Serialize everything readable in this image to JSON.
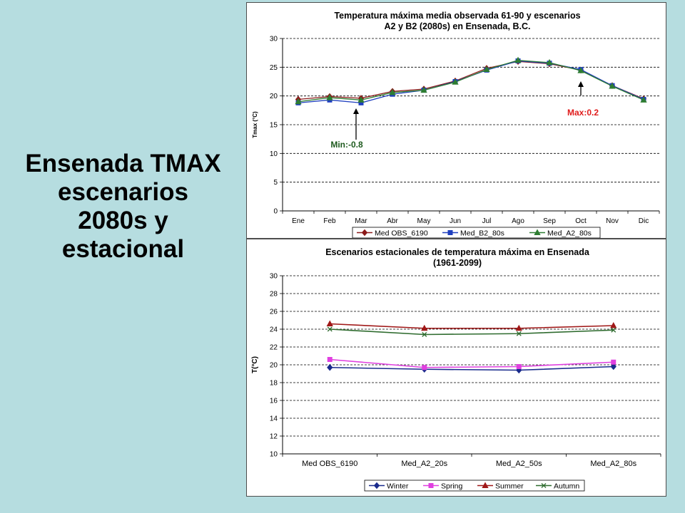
{
  "slide": {
    "title": "Ensenada TMAX\nescenarios\n2080s y\nestacional"
  },
  "colors": {
    "background": "#b6dde0",
    "annotation_min": "#1e5a1e",
    "annotation_max": "#e01b1b"
  },
  "chart_data": [
    {
      "type": "line",
      "title": [
        "Temperatura máxima media observada 61-90 y escenarios",
        "A2 y B2 (2080s) en Ensenada, B.C."
      ],
      "ylabel": "Tmax (°C)",
      "xlabel": "",
      "ylim": [
        0,
        30
      ],
      "yticks": [
        0,
        5,
        10,
        15,
        20,
        25,
        30
      ],
      "grid": true,
      "categories": [
        "Ene",
        "Feb",
        "Mar",
        "Abr",
        "May",
        "Jun",
        "Jul",
        "Ago",
        "Sep",
        "Oct",
        "Nov",
        "Dic"
      ],
      "series": [
        {
          "name": "Med OBS_6190",
          "color": "#8b1a1a",
          "marker": "diamond",
          "values": [
            19.4,
            19.9,
            19.6,
            20.8,
            21.2,
            22.6,
            24.8,
            26.0,
            25.6,
            24.5,
            21.8,
            19.5
          ]
        },
        {
          "name": "Med_B2_80s",
          "color": "#1f3fbf",
          "marker": "square",
          "values": [
            18.8,
            19.3,
            18.8,
            20.3,
            21.0,
            22.5,
            24.5,
            26.1,
            25.7,
            24.6,
            21.8,
            19.4
          ]
        },
        {
          "name": "Med_A2_80s",
          "color": "#2e7d32",
          "marker": "triangle",
          "values": [
            19.0,
            19.7,
            19.3,
            20.6,
            21.0,
            22.4,
            24.6,
            26.2,
            25.8,
            24.4,
            21.7,
            19.3
          ]
        }
      ],
      "legend": "bottom",
      "annotations": [
        {
          "text": "Min:-0.8",
          "category": "Mar",
          "color_key": "annotation_min"
        },
        {
          "text": "Max:0.2",
          "category": "Oct",
          "color_key": "annotation_max"
        }
      ]
    },
    {
      "type": "line",
      "title": [
        "Escenarios estacionales de temperatura máxima en Ensenada",
        "(1961-2099)"
      ],
      "ylabel": "T(°C)",
      "xlabel": "",
      "ylim": [
        10,
        30
      ],
      "yticks": [
        10,
        12,
        14,
        16,
        18,
        20,
        22,
        24,
        26,
        28,
        30
      ],
      "grid": true,
      "categories": [
        "Med OBS_6190",
        "Med_A2_20s",
        "Med_A2_50s",
        "Med_A2_80s"
      ],
      "series": [
        {
          "name": "Winter",
          "color": "#1a2b8c",
          "marker": "diamond",
          "values": [
            19.7,
            19.5,
            19.4,
            19.8
          ]
        },
        {
          "name": "Spring",
          "color": "#e040e0",
          "marker": "square",
          "values": [
            20.6,
            19.7,
            19.8,
            20.3
          ]
        },
        {
          "name": "Summer",
          "color": "#a01818",
          "marker": "triangle",
          "values": [
            24.6,
            24.1,
            24.1,
            24.4
          ]
        },
        {
          "name": "Autumn",
          "color": "#2e6b2e",
          "marker": "x",
          "values": [
            24.0,
            23.4,
            23.5,
            23.9
          ]
        }
      ],
      "legend": "bottom"
    }
  ]
}
